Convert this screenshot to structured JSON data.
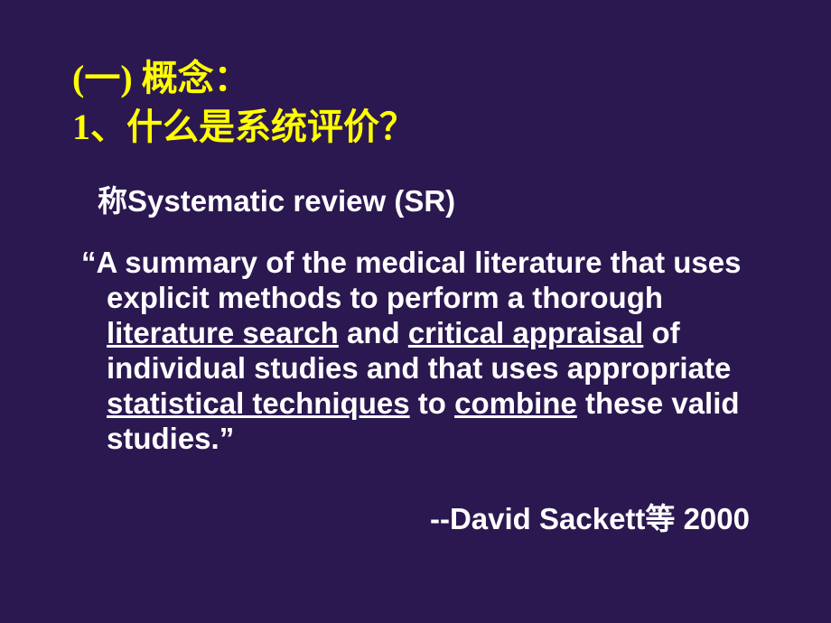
{
  "slide": {
    "background_color": "#2b1850",
    "title_color": "#ffff00",
    "text_color": "#ffffff",
    "title_line1": "(一) 概念：",
    "title_line2": "1、什么是系统评价？",
    "subtitle": "称Systematic review (SR)",
    "quote_open": "“",
    "quote_close": "”",
    "body_part1": "A summary of the medical literature that uses explicit methods to perform a thorough ",
    "underline1": "literature search",
    "body_part2": " and ",
    "underline2": "critical appraisal",
    "body_part3": " of individual studies and that uses appropriate ",
    "underline3": "statistical techniques",
    "body_part4": " to ",
    "underline4": "combine",
    "body_part5": " these valid studies.",
    "attribution": "--David Sackett等 2000",
    "title_fontsize": 40,
    "body_fontsize": 33
  }
}
